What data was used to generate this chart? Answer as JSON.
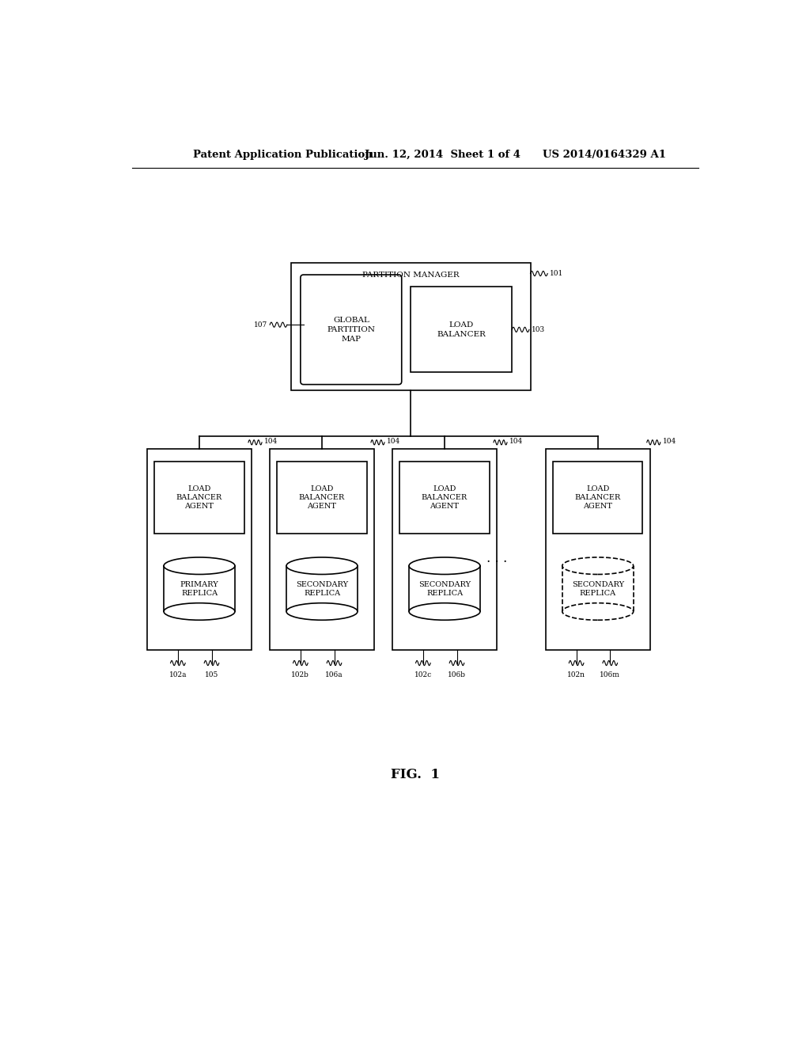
{
  "bg_color": "#ffffff",
  "text_color": "#000000",
  "header_left": "Patent Application Publication",
  "header_mid": "Jun. 12, 2014  Sheet 1 of 4",
  "header_right": "US 2014/0164329 A1",
  "fig_label": "FIG.  1",
  "partition_manager_label": "PARTITION MANAGER",
  "global_partition_map_label": "GLOBAL\nPARTITION\nMAP",
  "load_balancer_label": "LOAD\nBALANCER",
  "load_balancer_agent_label": "LOAD\nBALANCER\nAGENT",
  "primary_replica_label": "PRIMARY\nREPLICA",
  "secondary_replica_label": "SECONDARY\nREPLICA",
  "ref_101": "101",
  "ref_103": "103",
  "ref_107": "107",
  "ref_104": "104",
  "ref_102a": "102a",
  "ref_105": "105",
  "ref_102b": "102b",
  "ref_106a": "106a",
  "ref_102c": "102c",
  "ref_106b": "106b",
  "ref_102n": "102n",
  "ref_106m": "106m"
}
